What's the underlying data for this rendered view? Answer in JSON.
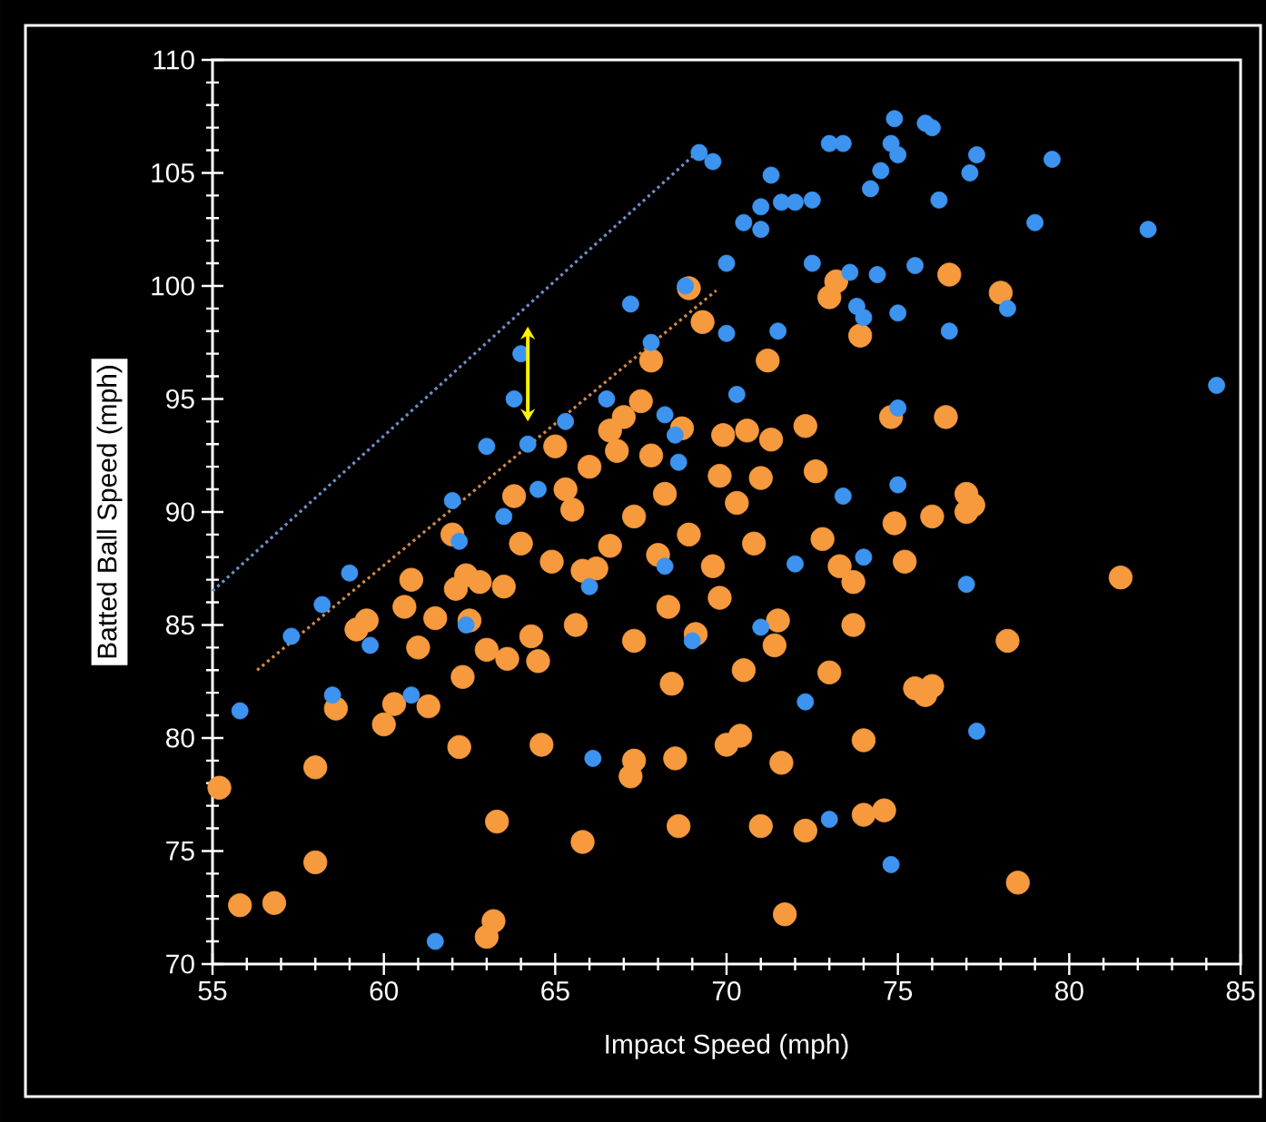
{
  "chart_data": {
    "type": "scatter",
    "xlabel": "Impact Speed (mph)",
    "ylabel": "Batted Ball Speed (mph)",
    "xlim": [
      55,
      85
    ],
    "ylim": [
      70,
      110
    ],
    "xticks": [
      55,
      {
        "value": 56,
        "label": null
      },
      {
        "value": 57,
        "label": null
      },
      {
        "value": 58,
        "label": null
      },
      {
        "value": 59,
        "label": null
      },
      60,
      {
        "value": 61,
        "label": null
      },
      {
        "value": 62,
        "label": null
      },
      {
        "value": 63,
        "label": null
      },
      {
        "value": 64,
        "label": null
      },
      65,
      {
        "value": 66,
        "label": null
      },
      {
        "value": 67,
        "label": null
      },
      {
        "value": 68,
        "label": null
      },
      {
        "value": 69,
        "label": null
      },
      70,
      {
        "value": 71,
        "label": null
      },
      {
        "value": 72,
        "label": null
      },
      {
        "value": 73,
        "label": null
      },
      {
        "value": 74,
        "label": null
      },
      75,
      {
        "value": 76,
        "label": null
      },
      {
        "value": 77,
        "label": null
      },
      {
        "value": 78,
        "label": null
      },
      {
        "value": 79,
        "label": null
      },
      80,
      {
        "value": 81,
        "label": null
      },
      {
        "value": 82,
        "label": null
      },
      {
        "value": 83,
        "label": null
      },
      {
        "value": 84,
        "label": null
      },
      85
    ],
    "yticks": [
      70,
      {
        "value": 71,
        "label": null
      },
      {
        "value": 72,
        "label": null
      },
      {
        "value": 73,
        "label": null
      },
      {
        "value": 74,
        "label": null
      },
      75,
      {
        "value": 76,
        "label": null
      },
      {
        "value": 77,
        "label": null
      },
      {
        "value": 78,
        "label": null
      },
      {
        "value": 79,
        "label": null
      },
      80,
      {
        "value": 81,
        "label": null
      },
      {
        "value": 82,
        "label": null
      },
      {
        "value": 83,
        "label": null
      },
      {
        "value": 84,
        "label": null
      },
      85,
      {
        "value": 86,
        "label": null
      },
      {
        "value": 87,
        "label": null
      },
      {
        "value": 88,
        "label": null
      },
      {
        "value": 89,
        "label": null
      },
      90,
      {
        "value": 91,
        "label": null
      },
      {
        "value": 92,
        "label": null
      },
      {
        "value": 93,
        "label": null
      },
      {
        "value": 94,
        "label": null
      },
      95,
      {
        "value": 96,
        "label": null
      },
      {
        "value": 97,
        "label": null
      },
      {
        "value": 98,
        "label": null
      },
      {
        "value": 99,
        "label": null
      },
      100,
      {
        "value": 101,
        "label": null
      },
      {
        "value": 102,
        "label": null
      },
      {
        "value": 103,
        "label": null
      },
      {
        "value": 104,
        "label": null
      },
      105,
      {
        "value": 106,
        "label": null
      },
      {
        "value": 107,
        "label": null
      },
      {
        "value": 108,
        "label": null
      },
      {
        "value": 109,
        "label": null
      },
      110
    ],
    "marker": "circle",
    "series": [
      {
        "color": "#f79a3e",
        "x": [
          55.2,
          55.8,
          56.8,
          58,
          58,
          58.6,
          59.2,
          59.5,
          60,
          60.3,
          60.6,
          60.8,
          61.0,
          61.3,
          61.5,
          62,
          62.1,
          62.4,
          62.5,
          62.2,
          62.3,
          62.8,
          63.0,
          63.0,
          63.2,
          63.3,
          63.5,
          63.6,
          63.8,
          64,
          64.3,
          64.5,
          64.6,
          64.9,
          65,
          65.3,
          65.5,
          65.8,
          65.8,
          65.6,
          66,
          66.2,
          66.6,
          66.8,
          67,
          67.3,
          67.3,
          67.3,
          67.2,
          67.5,
          67.8,
          67.8,
          68,
          68.2,
          68.3,
          68.4,
          68.6,
          68.5,
          68.7,
          68.9,
          69.1,
          69.3,
          69.6,
          69.8,
          69.9,
          70.0,
          70.3,
          70.6,
          70.4,
          70.8,
          71.0,
          71.2,
          71.3,
          71.5,
          71.4,
          71.6,
          71.7,
          71.0,
          72.3,
          72.6,
          72.8,
          73.0,
          73.0,
          73.2,
          73.3,
          73.7,
          73.7,
          73.9,
          74.0,
          74.0,
          74.6,
          74.8,
          74.9,
          75.2,
          75.5,
          75.8,
          76,
          76,
          76.4,
          76.5,
          77.0,
          77.0,
          77.2,
          78.0,
          78.2,
          78.5,
          81.5,
          68.9,
          70.5,
          69.8,
          72.3,
          66.6
        ],
        "values": [
          77.8,
          72.6,
          72.7,
          78.7,
          74.5,
          81.3,
          84.8,
          85.2,
          80.6,
          81.5,
          85.8,
          87.0,
          84.0,
          81.4,
          85.3,
          89.0,
          86.6,
          87.2,
          85.2,
          79.6,
          82.7,
          86.9,
          83.9,
          71.2,
          71.9,
          76.3,
          86.7,
          83.5,
          90.7,
          88.6,
          84.5,
          83.4,
          79.7,
          87.8,
          92.9,
          91.0,
          90.1,
          87.4,
          75.4,
          85.0,
          92.0,
          87.5,
          93.6,
          92.7,
          94.2,
          89.8,
          84.3,
          79,
          78.3,
          94.9,
          96.7,
          92.5,
          88.1,
          90.8,
          85.8,
          82.4,
          76.1,
          79.1,
          93.7,
          89.0,
          84.6,
          98.4,
          87.6,
          91.6,
          93.4,
          79.7,
          90.4,
          93.6,
          80.1,
          88.6,
          91.5,
          96.7,
          93.2,
          85.2,
          84.1,
          78.9,
          72.2,
          76.1,
          93.8,
          91.8,
          88.8,
          99.5,
          82.9,
          100.2,
          87.6,
          86.9,
          85.0,
          97.8,
          79.9,
          76.6,
          76.8,
          94.2,
          89.5,
          87.8,
          82.2,
          81.9,
          89.8,
          82.3,
          94.2,
          100.5,
          90.8,
          90.0,
          90.3,
          99.7,
          84.3,
          73.6,
          87.1,
          99.9,
          83.0,
          86.2,
          75.9,
          88.5
        ]
      },
      {
        "color": "#3d94f0",
        "x": [
          55.8,
          57.3,
          58.2,
          58.5,
          59,
          59.6,
          60.8,
          61.5,
          62,
          62.2,
          62.4,
          63,
          63.5,
          63.8,
          64.0,
          64.5,
          65.3,
          66,
          66.1,
          66.5,
          67.2,
          67.8,
          68.2,
          68.6,
          68.2,
          68.8,
          69,
          69.2,
          69.6,
          70,
          70,
          70.3,
          70.5,
          71,
          71,
          71.5,
          71,
          71.3,
          71.6,
          72,
          72.3,
          72.5,
          72.5,
          73,
          73.4,
          73.6,
          73.4,
          73.8,
          74,
          74.2,
          74.4,
          74.5,
          74.9,
          74.8,
          75,
          75,
          75,
          75,
          74.8,
          75.8,
          76,
          75.5,
          76.2,
          76.5,
          77,
          77.3,
          77.1,
          77.3,
          78.2,
          79,
          79.5,
          82.3,
          84.3,
          73,
          72,
          74,
          68.5,
          64.2
        ],
        "values": [
          81.2,
          84.5,
          85.9,
          81.9,
          87.3,
          84.1,
          81.9,
          71.0,
          90.5,
          88.7,
          85,
          92.9,
          89.8,
          95,
          97,
          91,
          94.0,
          86.7,
          79.1,
          95.0,
          99.2,
          97.5,
          94.3,
          92.2,
          87.6,
          100.0,
          84.3,
          105.9,
          105.5,
          97.9,
          101.0,
          95.2,
          102.8,
          102.5,
          84.9,
          98.0,
          103.5,
          104.9,
          103.7,
          103.7,
          81.6,
          103.8,
          101.0,
          106.3,
          106.3,
          100.6,
          90.7,
          99.1,
          98.6,
          104.3,
          100.5,
          105.1,
          107.4,
          106.3,
          105.8,
          98.8,
          94.6,
          91.2,
          74.4,
          107.2,
          107.0,
          100.9,
          103.8,
          98.0,
          86.8,
          80.3,
          105.0,
          105.8,
          99.0,
          102.8,
          105.6,
          102.5,
          95.6,
          76.4,
          87.7,
          88.0,
          93.4,
          93.0
        ]
      },
      {
        "type": "line",
        "marker": "none",
        "line_style": "dotted",
        "color": "#6f8fc8",
        "x": [
          55,
          69.2
        ],
        "values": [
          86.5,
          106
        ]
      },
      {
        "type": "line",
        "marker": "none",
        "line_style": "dotted",
        "color": "#d08a4a",
        "x": [
          56.3,
          69.7
        ],
        "values": [
          83,
          99.8
        ]
      }
    ]
  }
}
